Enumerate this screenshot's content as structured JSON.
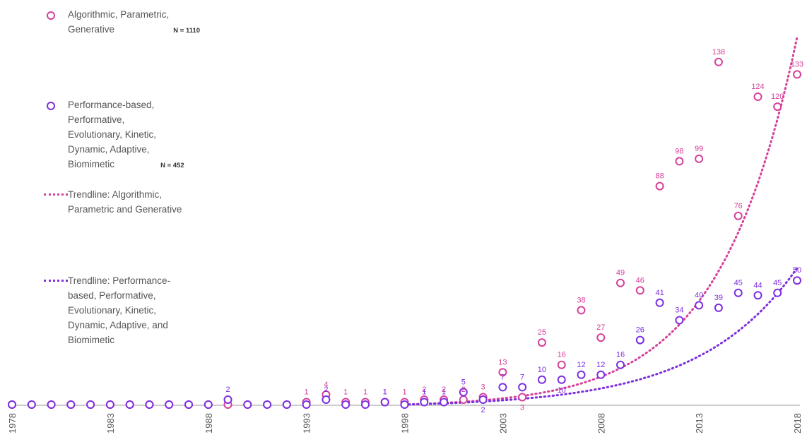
{
  "chart_data": {
    "type": "scatter",
    "title": "",
    "xlabel": "",
    "ylabel": "",
    "xlim": [
      1978,
      2018
    ],
    "ylim": [
      0,
      155
    ],
    "x_tick_labels": [
      "1978",
      "1983",
      "1988",
      "1993",
      "1998",
      "2003",
      "2008",
      "2013",
      "2018"
    ],
    "x": [
      1978,
      1979,
      1980,
      1981,
      1982,
      1983,
      1984,
      1985,
      1986,
      1987,
      1988,
      1989,
      1990,
      1991,
      1992,
      1993,
      1994,
      1995,
      1996,
      1997,
      1998,
      1999,
      2000,
      2001,
      2002,
      2003,
      2004,
      2005,
      2006,
      2007,
      2008,
      2009,
      2010,
      2011,
      2012,
      2013,
      2014,
      2015,
      2016,
      2017,
      2018
    ],
    "series": [
      {
        "name": "Algorithmic, Parametric, Generative",
        "n_label": "N = 1110",
        "color": "#d6409a",
        "values": [
          0,
          0,
          0,
          0,
          0,
          0,
          0,
          0,
          0,
          0,
          0,
          0,
          0,
          0,
          0,
          1,
          4,
          1,
          1,
          1,
          1,
          2,
          2,
          2,
          3,
          13,
          3,
          25,
          16,
          38,
          27,
          49,
          46,
          88,
          98,
          99,
          138,
          76,
          124,
          120,
          133
        ],
        "labels": [
          "",
          "",
          "",
          "",
          "",
          "",
          "",
          "",
          "",
          "",
          "",
          "",
          "",
          "",
          "",
          "1",
          "4",
          "1",
          "1",
          "1",
          "1",
          "2",
          "2",
          "2",
          "3",
          "13",
          "3",
          "25",
          "16",
          "38",
          "27",
          "49",
          "46",
          "88",
          "98",
          "99",
          "138",
          "76",
          "124",
          "120",
          "133"
        ]
      },
      {
        "name": "Performance-based, Performative, Evolutionary, Kinetic, Dynamic, Adaptive, Biomimetic",
        "n_label": "N = 452",
        "color": "#7c2ee0",
        "values": [
          0,
          0,
          0,
          0,
          0,
          0,
          0,
          0,
          0,
          0,
          0,
          2,
          0,
          0,
          0,
          0,
          2,
          0,
          0,
          1,
          0,
          1,
          1,
          5,
          2,
          7,
          7,
          10,
          10,
          12,
          12,
          16,
          26,
          41,
          34,
          40,
          39,
          45,
          44,
          45,
          50
        ],
        "labels": [
          "",
          "",
          "",
          "",
          "",
          "",
          "",
          "",
          "",
          "",
          "",
          "2",
          "",
          "",
          "",
          "",
          "2",
          "",
          "",
          "1",
          "",
          "1",
          "1",
          "5",
          "2",
          "7",
          "7",
          "10",
          "10",
          "12",
          "12",
          "16",
          "26",
          "41",
          "34",
          "40",
          "39",
          "45",
          "44",
          "45",
          "50"
        ]
      }
    ],
    "trendlines": [
      {
        "name": "Trendline: Algorithmic, Parametric and Generative",
        "color": "#d6409a",
        "start_year": 1998,
        "end_year": 2018,
        "end_value": 148
      },
      {
        "name": "Trendline: Performance-based, Performative, Evolutionary, Kinetic, Dynamic, Adaptive, and Biomimetic",
        "color": "#7c2ee0",
        "start_year": 1998,
        "end_year": 2018,
        "end_value": 55
      }
    ]
  },
  "legend": {
    "series_a_label": "Algorithmic, Parametric,\nGenerative",
    "series_a_n": "N = 1110",
    "series_b_label": "Performance-based,\nPerformative,\nEvolutionary,  Kinetic,\nDynamic, Adaptive,\nBiomimetic",
    "series_b_n": "N = 452",
    "trend_a_label": "Trendline: Algorithmic,\nParametric and Generative",
    "trend_b_label": "Trendline: Performance-\nbased, Performative,\nEvolutionary,  Kinetic,\nDynamic, Adaptive, and\nBiomimetic"
  }
}
